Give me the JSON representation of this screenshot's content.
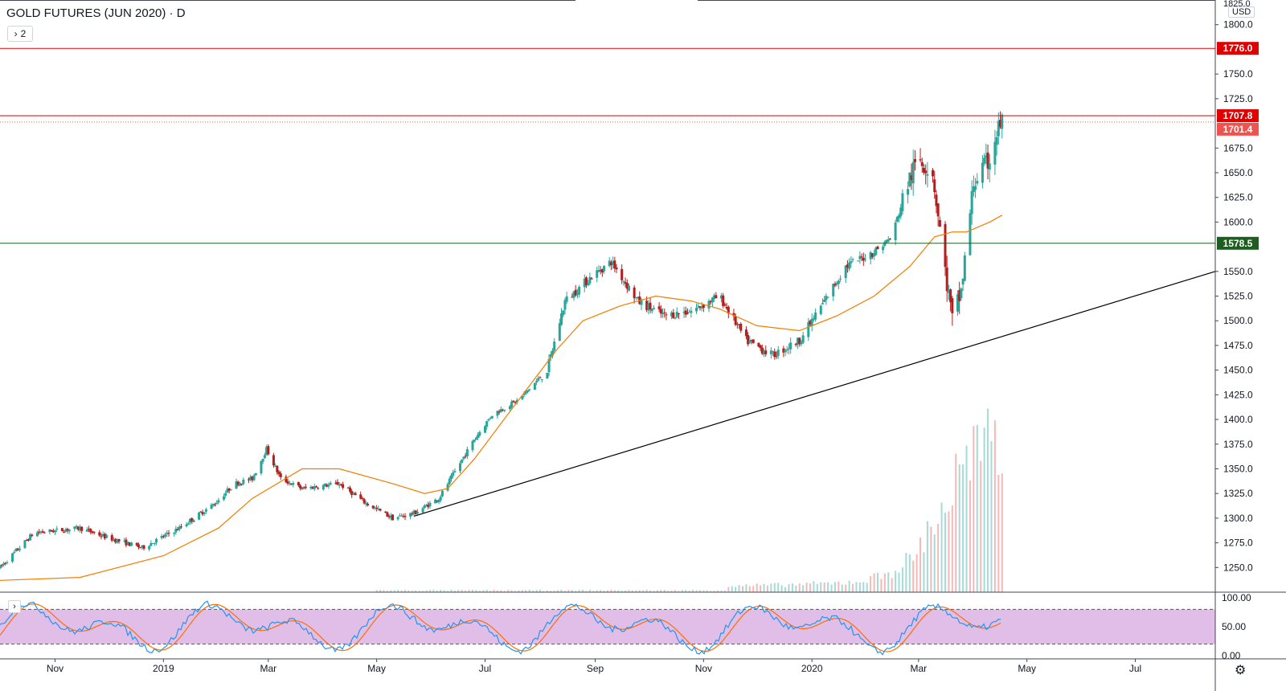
{
  "header": {
    "title": "GOLD FUTURES (JUN 2020) · D",
    "collapse_count": "2",
    "currency": "USD"
  },
  "price_axis": {
    "ticks": [
      "1800.0",
      "1750.0",
      "1725.0",
      "1675.0",
      "1650.0",
      "1625.0",
      "1600.0",
      "1550.0",
      "1525.0",
      "1500.0",
      "1475.0",
      "1450.0",
      "1425.0",
      "1400.0",
      "1375.0",
      "1350.0",
      "1325.0",
      "1300.0",
      "1275.0",
      "1250.0"
    ],
    "top_partial": "1825.0"
  },
  "osc_axis": {
    "ticks": [
      "100.00",
      "50.00",
      "0.00"
    ]
  },
  "time_axis": [
    "Nov",
    "2019",
    "Mar",
    "May",
    "Jul",
    "Sep",
    "Nov",
    "2020",
    "Mar",
    "May",
    "Jul"
  ],
  "levels": [
    {
      "price": 1776.0,
      "label": "1776.0",
      "color": "#e00000",
      "style": "solid"
    },
    {
      "price": 1707.8,
      "label": "1707.8",
      "color": "#e00000",
      "style": "solid"
    },
    {
      "price": 1701.4,
      "label": "1701.4",
      "color": "#ef5350",
      "style": "dotted"
    },
    {
      "price": 1578.5,
      "label": "1578.5",
      "color": "#1b5e20",
      "style": "solid"
    }
  ],
  "colors": {
    "up": "#26a69a",
    "down": "#b71c1c",
    "ma": "#f57c00",
    "trend": "#000000",
    "stoch_k": "#2196f3",
    "stoch_d": "#ff6d00",
    "stoch_band": "#e1bee7"
  },
  "chart_data": {
    "type": "candlestick",
    "title": "GOLD FUTURES (JUN 2020) · D",
    "ylim": [
      1225,
      1825
    ],
    "x_range": [
      "2018-10-01",
      "2020-08-15"
    ],
    "ma_series": [
      [
        "2018-10-01",
        1237
      ],
      [
        "2018-11-15",
        1240
      ],
      [
        "2019-01-01",
        1262
      ],
      [
        "2019-02-01",
        1290
      ],
      [
        "2019-02-20",
        1320
      ],
      [
        "2019-03-20",
        1350
      ],
      [
        "2019-04-10",
        1350
      ],
      [
        "2019-05-10",
        1335
      ],
      [
        "2019-05-28",
        1325
      ],
      [
        "2019-06-10",
        1330
      ],
      [
        "2019-06-25",
        1360
      ],
      [
        "2019-07-20",
        1420
      ],
      [
        "2019-08-10",
        1470
      ],
      [
        "2019-08-25",
        1500
      ],
      [
        "2019-09-15",
        1515
      ],
      [
        "2019-10-05",
        1525
      ],
      [
        "2019-10-25",
        1520
      ],
      [
        "2019-11-10",
        1512
      ],
      [
        "2019-12-01",
        1495
      ],
      [
        "2019-12-25",
        1490
      ],
      [
        "2020-01-15",
        1505
      ],
      [
        "2020-02-05",
        1525
      ],
      [
        "2020-02-25",
        1555
      ],
      [
        "2020-03-10",
        1585
      ],
      [
        "2020-03-20",
        1590
      ],
      [
        "2020-03-28",
        1590
      ],
      [
        "2020-04-10",
        1600
      ],
      [
        "2020-04-17",
        1607
      ]
    ],
    "trendline": [
      [
        "2019-05-22",
        1302
      ],
      [
        "2020-08-15",
        1550
      ]
    ],
    "volume_series": [
      [
        "2019-11-15",
        10
      ],
      [
        "2019-12-15",
        12
      ],
      [
        "2020-01-15",
        15
      ],
      [
        "2020-02-01",
        20
      ],
      [
        "2020-02-15",
        35
      ],
      [
        "2020-02-28",
        60
      ],
      [
        "2020-03-06",
        100
      ],
      [
        "2020-03-12",
        130
      ],
      [
        "2020-03-18",
        150
      ],
      [
        "2020-03-25",
        210
      ],
      [
        "2020-04-02",
        220
      ],
      [
        "2020-04-09",
        230
      ],
      [
        "2020-04-15",
        240
      ],
      [
        "2020-04-17",
        230
      ]
    ],
    "osc_ylim": [
      0,
      100
    ],
    "osc_bands": [
      20,
      80
    ]
  }
}
